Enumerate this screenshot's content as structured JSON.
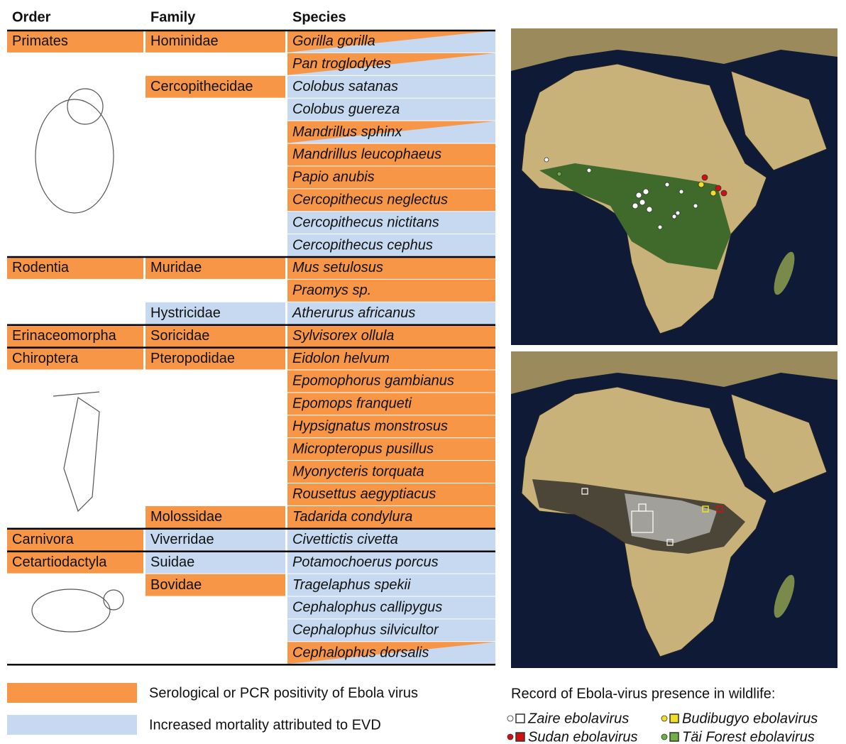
{
  "header": {
    "order": "Order",
    "family": "Family",
    "species": "Species"
  },
  "legend": [
    {
      "label": "Serological or PCR positivity of Ebola virus",
      "color": "#f79646"
    },
    {
      "label": "Increased mortality attributed to EVD",
      "color": "#c6d9f0"
    }
  ],
  "rows": [
    {
      "order": "Primates",
      "family": "Hominidae",
      "species": "Gorilla gorilla",
      "fills": [
        0,
        0,
        [
          0,
          1
        ]
      ]
    },
    {
      "species": "Pan troglodytes",
      "fills": [
        null,
        null,
        [
          0,
          1
        ]
      ]
    },
    {
      "family": "Cercopithecidae",
      "species": "Colobus satanas",
      "fills": [
        null,
        0,
        1
      ]
    },
    {
      "species": "Colobus guereza",
      "fills": [
        null,
        null,
        1
      ]
    },
    {
      "species": "Mandrillus sphinx",
      "fills": [
        null,
        null,
        [
          0,
          1
        ]
      ]
    },
    {
      "species": "Mandrillus leucophaeus",
      "fills": [
        null,
        null,
        0
      ]
    },
    {
      "species": "Papio anubis",
      "fills": [
        null,
        null,
        0
      ]
    },
    {
      "species": "Cercopithecus neglectus",
      "fills": [
        null,
        null,
        0
      ]
    },
    {
      "species": "Cercopithecus nictitans",
      "fills": [
        null,
        null,
        1
      ]
    },
    {
      "species": "Cercopithecus cephus",
      "fills": [
        null,
        null,
        1
      ]
    },
    {
      "order": "Rodentia",
      "family": "Muridae",
      "species": "Mus setulosus",
      "fills": [
        0,
        0,
        0
      ]
    },
    {
      "species": "Praomys sp.",
      "fills": [
        null,
        null,
        0
      ]
    },
    {
      "family": "Hystricidae",
      "species": "Atherurus africanus",
      "fills": [
        null,
        1,
        1
      ]
    },
    {
      "order": "Erinaceomorpha",
      "family": "Soricidae",
      "species": "Sylvisorex ollula",
      "fills": [
        0,
        0,
        0
      ]
    },
    {
      "order": "Chiroptera",
      "family": "Pteropodidae",
      "species": "Eidolon helvum",
      "fills": [
        0,
        0,
        0
      ]
    },
    {
      "species": "Epomophorus gambianus",
      "fills": [
        null,
        null,
        0
      ]
    },
    {
      "species": "Epomops franqueti",
      "fills": [
        null,
        null,
        0
      ]
    },
    {
      "species": "Hypsignatus monstrosus",
      "fills": [
        null,
        null,
        0
      ]
    },
    {
      "species": "Micropteropus pusillus",
      "fills": [
        null,
        null,
        0
      ]
    },
    {
      "species": "Myonycteris torquata",
      "fills": [
        null,
        null,
        0
      ]
    },
    {
      "species": "Rousettus aegyptiacus",
      "fills": [
        null,
        null,
        0
      ]
    },
    {
      "family": "Molossidae",
      "species": "Tadarida condylura",
      "fills": [
        null,
        0,
        0
      ]
    },
    {
      "order": "Carnivora",
      "family": "Viverridae",
      "species": "Civettictis civetta",
      "fills": [
        0,
        1,
        1
      ]
    },
    {
      "order": "Cetartiodactyla",
      "family": "Suidae",
      "species": "Potamochoerus porcus",
      "fills": [
        0,
        1,
        1
      ]
    },
    {
      "family": "Bovidae",
      "species": "Tragelaphus spekii",
      "fills": [
        null,
        0,
        1
      ]
    },
    {
      "species": "Cephalophus callipygus",
      "fills": [
        null,
        null,
        1
      ]
    },
    {
      "species": "Cephalophus silvicultor",
      "fills": [
        null,
        null,
        1
      ]
    },
    {
      "species": "Cephalophus dorsalis",
      "fills": [
        null,
        null,
        [
          0,
          1
        ]
      ]
    }
  ],
  "map_legend": {
    "title": "Record of Ebola-virus presence in wildlife:",
    "viruses": [
      {
        "name": "Zaire ebolavirus",
        "color": "#ffffff"
      },
      {
        "name": "Budibugyo ebolavirus",
        "color": "#f0e020"
      },
      {
        "name": "Sudan ebolavirus",
        "color": "#d01010"
      },
      {
        "name": "Täi Forest ebolavirus",
        "color": "#70b040"
      }
    ]
  }
}
